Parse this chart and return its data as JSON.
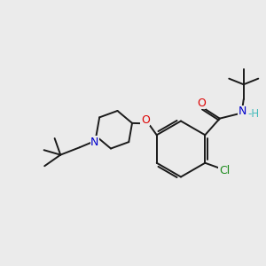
{
  "bg_color": "#ebebeb",
  "bond_color": "#1a1a1a",
  "N_color": "#0000cc",
  "O_color": "#dd0000",
  "Cl_color": "#1a8a1a",
  "NH_color": "#44bbbb",
  "figsize": [
    3.0,
    3.0
  ],
  "dpi": 100,
  "lw": 1.4,
  "fs": 8.5,
  "xlim": [
    0,
    10
  ],
  "ylim": [
    0,
    10
  ]
}
